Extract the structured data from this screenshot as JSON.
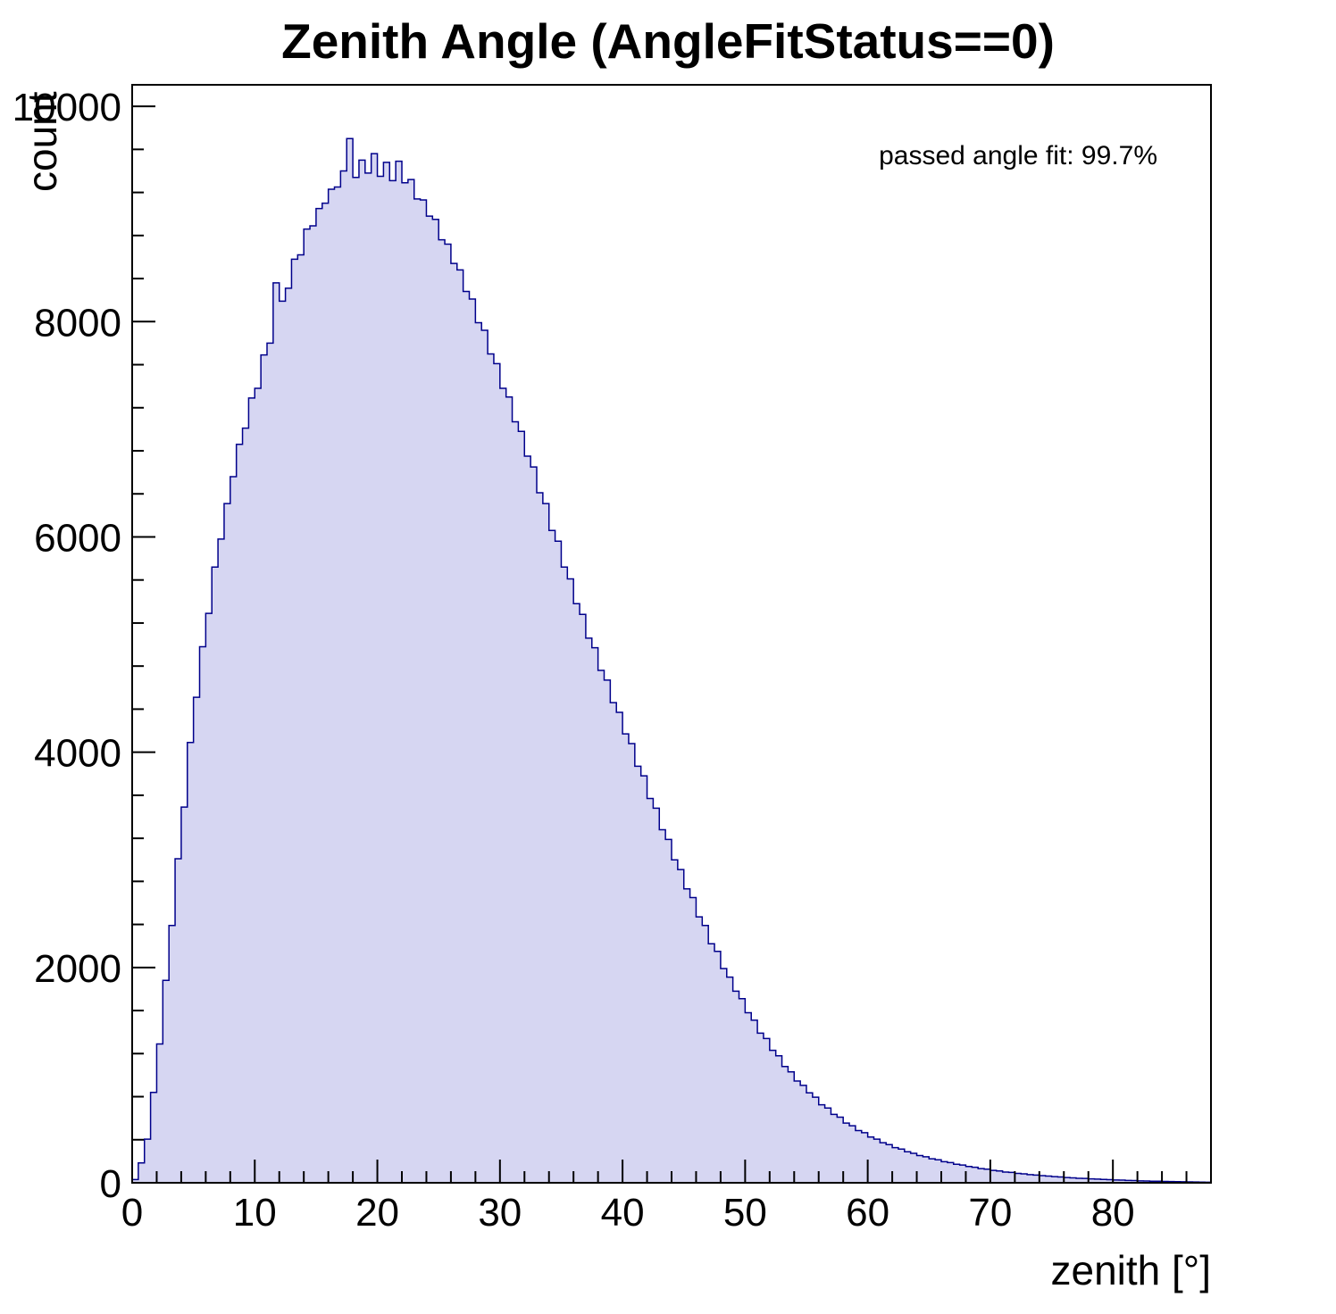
{
  "chart_data": {
    "type": "bar",
    "subtype": "histogram",
    "title": "Zenith Angle (AngleFitStatus==0)",
    "xlabel": "zenith [°]",
    "ylabel": "count",
    "annotation": "passed angle fit: 99.7%",
    "legend_position": "top-right",
    "grid": false,
    "xlim": [
      0,
      88
    ],
    "ylim": [
      0,
      10200
    ],
    "xticks": [
      0,
      10,
      20,
      30,
      40,
      50,
      60,
      70,
      80
    ],
    "yticks": [
      0,
      2000,
      4000,
      6000,
      8000,
      10000
    ],
    "x_minor_step": 2,
    "y_minor_step": 400,
    "bin_start": 0,
    "bin_width": 0.5,
    "fill_color": "#d6d6f2",
    "line_color": "#00008b",
    "counts": [
      30,
      185,
      405,
      840,
      1290,
      1880,
      2390,
      3010,
      3490,
      4090,
      4510,
      4980,
      5290,
      5720,
      5980,
      6310,
      6560,
      6860,
      7010,
      7290,
      7380,
      7690,
      7800,
      8360,
      8190,
      8310,
      8580,
      8620,
      8860,
      8890,
      9050,
      9100,
      9230,
      9250,
      9400,
      9700,
      9340,
      9500,
      9380,
      9560,
      9350,
      9480,
      9310,
      9490,
      9290,
      9320,
      9140,
      9130,
      8980,
      8950,
      8760,
      8720,
      8540,
      8480,
      8280,
      8210,
      7990,
      7920,
      7700,
      7610,
      7380,
      7300,
      7070,
      6980,
      6750,
      6650,
      6410,
      6310,
      6060,
      5960,
      5720,
      5610,
      5380,
      5280,
      5060,
      4970,
      4760,
      4670,
      4460,
      4370,
      4170,
      4080,
      3870,
      3780,
      3570,
      3480,
      3280,
      3190,
      3000,
      2910,
      2730,
      2650,
      2470,
      2390,
      2220,
      2150,
      1990,
      1910,
      1780,
      1710,
      1580,
      1510,
      1390,
      1340,
      1230,
      1180,
      1080,
      1030,
      945,
      905,
      835,
      795,
      725,
      695,
      635,
      610,
      555,
      530,
      485,
      465,
      425,
      405,
      372,
      355,
      327,
      313,
      288,
      274,
      253,
      242,
      223,
      213,
      196,
      188,
      172,
      165,
      151,
      144,
      132,
      126,
      115,
      110,
      100,
      96,
      87,
      83,
      76,
      72,
      66,
      62,
      57,
      54,
      49,
      46,
      42,
      40,
      36,
      34,
      31,
      29,
      26,
      25,
      22,
      21,
      18,
      17,
      15,
      14,
      12,
      11,
      10,
      9,
      8,
      7,
      6,
      5
    ]
  }
}
